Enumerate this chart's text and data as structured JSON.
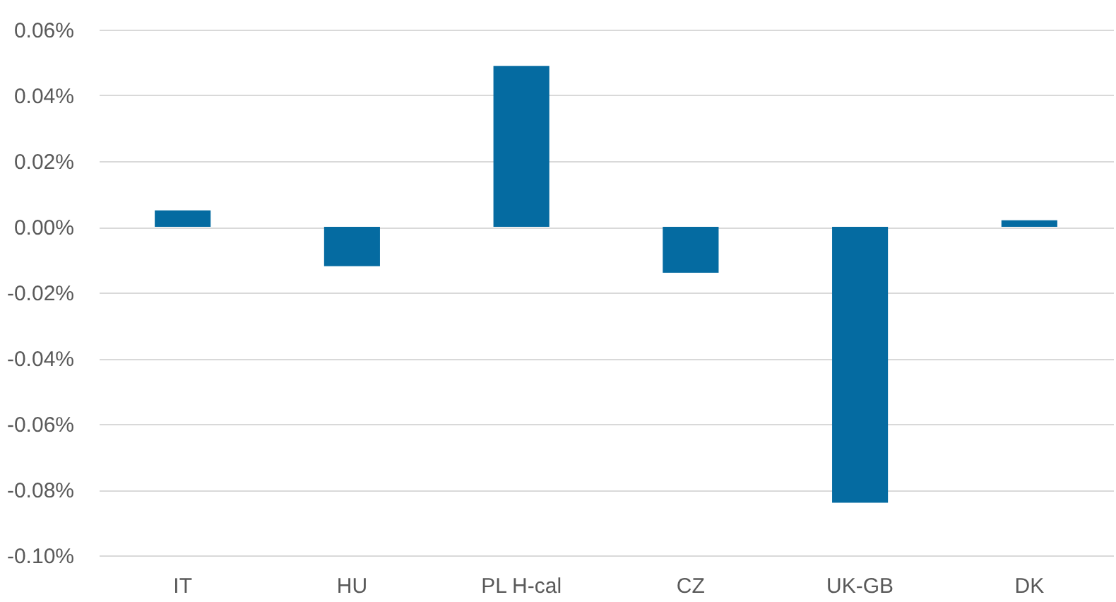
{
  "chart_data": {
    "type": "bar",
    "categories": [
      "IT",
      "HU",
      "PL H-cal",
      "CZ",
      "UK-GB",
      "DK"
    ],
    "values": [
      0.005,
      -0.012,
      0.049,
      -0.014,
      -0.084,
      0.002
    ],
    "color": "#056ba1",
    "ylim": [
      -0.1,
      0.06
    ],
    "yticks": [
      {
        "value": -0.1,
        "label": "-0.10%"
      },
      {
        "value": -0.08,
        "label": "-0.08%"
      },
      {
        "value": -0.06,
        "label": "-0.06%"
      },
      {
        "value": -0.04,
        "label": "-0.04%"
      },
      {
        "value": -0.02,
        "label": "-0.02%"
      },
      {
        "value": 0,
        "label": "0.00%"
      },
      {
        "value": 0.02,
        "label": "0.02%"
      },
      {
        "value": 0.04,
        "label": "0.04%"
      },
      {
        "value": 0.06,
        "label": "0.06%"
      }
    ],
    "grid": "y"
  }
}
